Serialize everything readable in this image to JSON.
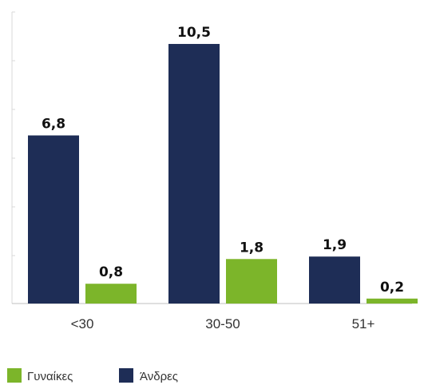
{
  "chart_data": {
    "type": "bar",
    "categories": [
      "<30",
      "30-50",
      "51+"
    ],
    "series": [
      {
        "name": "Άνδρες",
        "values": [
          6.8,
          10.5,
          1.9
        ],
        "labels": [
          "6,8",
          "10,5",
          "1,9"
        ],
        "color": "#1e2d56"
      },
      {
        "name": "Γυναίκες",
        "values": [
          0.8,
          1.8,
          0.2
        ],
        "labels": [
          "0,8",
          "1,8",
          "0,2"
        ],
        "color": "#7cb52a"
      }
    ],
    "legend": {
      "placement": "bottom-left",
      "order": [
        "Γυναίκες",
        "Άνδρες"
      ]
    },
    "ylim": [
      0,
      12
    ],
    "grid": false,
    "title": "",
    "xlabel": "",
    "ylabel": ""
  }
}
